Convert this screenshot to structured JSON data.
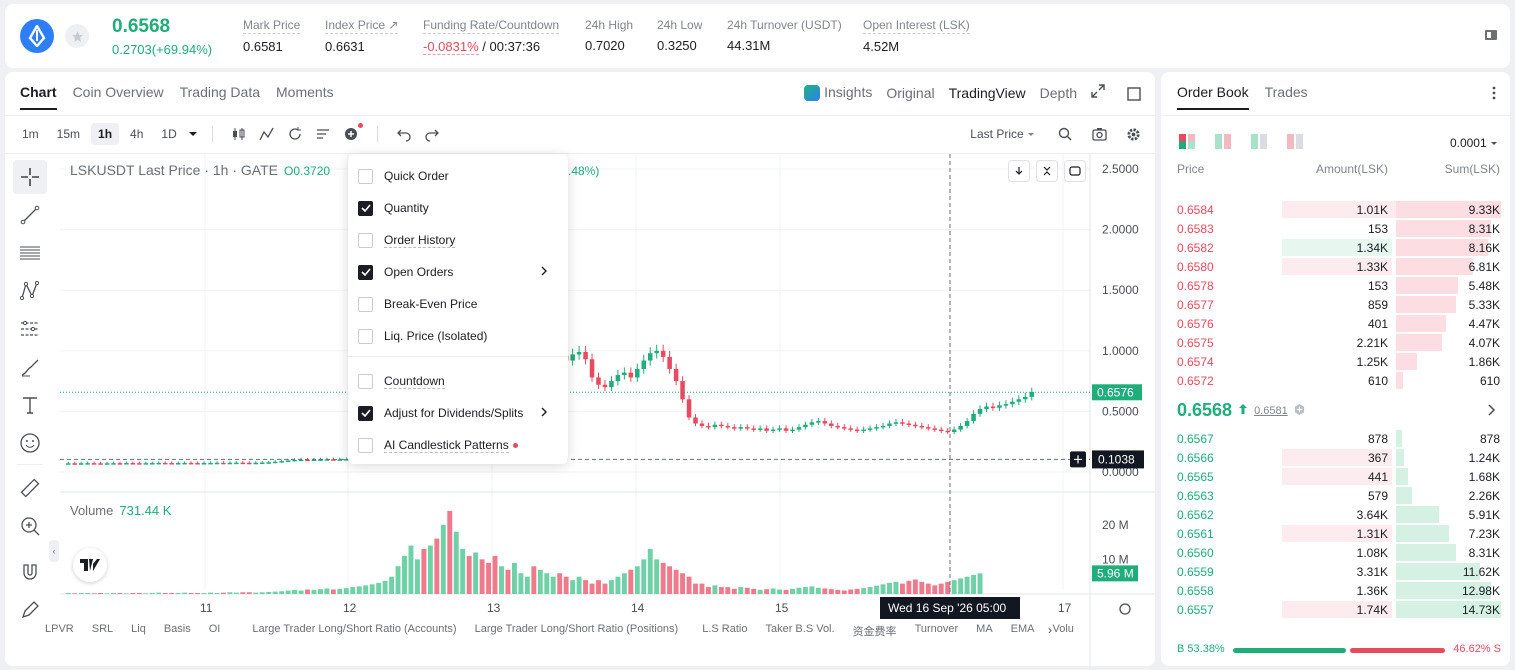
{
  "header": {
    "price": "0.6568",
    "change": "0.2703(+69.94%)",
    "stats": [
      {
        "label": "Mark Price",
        "value": "0.6581"
      },
      {
        "label": "Index Price ↗",
        "value": "0.6631"
      },
      {
        "label": "Funding Rate/Countdown",
        "value_neg": "-0.0831%",
        "value": " / 00:37:36"
      },
      {
        "label": "24h High",
        "value": "0.7020"
      },
      {
        "label": "24h Low",
        "value": "0.3250"
      },
      {
        "label": "24h Turnover (USDT)",
        "value": "44.31M"
      },
      {
        "label": "Open Interest (LSK)",
        "value": "4.52M"
      }
    ]
  },
  "chart_tabs": [
    "Chart",
    "Coin Overview",
    "Trading Data",
    "Moments"
  ],
  "view_tabs": [
    "Insights",
    "Original",
    "TradingView",
    "Depth"
  ],
  "intervals": [
    "1m",
    "15m",
    "1h",
    "4h",
    "1D"
  ],
  "price_type": "Last Price",
  "legend": {
    "symbol": "LSKUSDT Last Price · 1h · GATE",
    "open": "O0.3720",
    "extra": ".48%)"
  },
  "volume_legend": {
    "label": "Volume",
    "value": "731.44 K"
  },
  "menu": {
    "items": [
      {
        "label": "Quick Order",
        "checked": false
      },
      {
        "label": "Quantity",
        "checked": true
      },
      {
        "label": "Order History",
        "checked": false
      },
      {
        "label": "Open Orders",
        "checked": true
      },
      {
        "label": "Break-Even Price",
        "checked": false
      },
      {
        "label": "Liq. Price (Isolated)",
        "checked": false
      },
      {
        "label": "Countdown",
        "checked": false
      },
      {
        "label": "Adjust for Dividends/Splits",
        "checked": true
      },
      {
        "label": "AI Candlestick Patterns",
        "checked": false
      }
    ]
  },
  "chart_data": {
    "type": "candlestick",
    "price_axis": [
      "2.5000",
      "2.0000",
      "1.5000",
      "1.0000",
      "0.5000",
      "0.0000"
    ],
    "volume_axis": [
      "20 M",
      "10 M"
    ],
    "time_axis": [
      "11",
      "12",
      "13",
      "14",
      "15",
      "17"
    ],
    "last_price_label": "0.6576",
    "crosshair_price": "0.1038",
    "crosshair_time": "Wed 16 Sep '26   05:00",
    "last_volume_label": "5.96 M",
    "price_range": [
      0,
      2.5
    ],
    "candles_close": [
      0.072,
      0.071,
      0.072,
      0.073,
      0.072,
      0.071,
      0.072,
      0.073,
      0.072,
      0.074,
      0.073,
      0.072,
      0.073,
      0.074,
      0.075,
      0.074,
      0.073,
      0.074,
      0.075,
      0.074,
      0.073,
      0.074,
      0.075,
      0.076,
      0.075,
      0.076,
      0.077,
      0.076,
      0.075,
      0.076,
      0.078,
      0.08,
      0.085,
      0.09,
      0.095,
      0.1,
      0.102,
      0.1,
      0.103,
      0.104,
      0.105,
      0.103,
      0.104,
      0.106,
      0.108,
      0.11,
      0.115,
      0.12,
      0.13,
      0.15,
      0.2,
      0.3,
      0.42,
      0.58,
      0.62,
      0.6,
      0.7,
      0.68,
      0.75,
      0.72,
      0.85,
      0.95,
      0.9,
      1.0,
      0.98,
      0.92,
      0.88,
      0.95,
      0.8,
      0.85,
      0.9,
      0.95,
      0.88,
      0.92,
      0.96,
      1.0,
      0.96,
      0.92,
      0.97,
      0.99,
      0.93,
      0.78,
      0.72,
      0.7,
      0.75,
      0.8,
      0.82,
      0.78,
      0.85,
      0.92,
      0.98,
      1.0,
      0.95,
      0.85,
      0.75,
      0.6,
      0.45,
      0.4,
      0.38,
      0.37,
      0.39,
      0.38,
      0.37,
      0.36,
      0.37,
      0.36,
      0.35,
      0.36,
      0.34,
      0.35,
      0.36,
      0.34,
      0.35,
      0.37,
      0.39,
      0.41,
      0.42,
      0.4,
      0.38,
      0.37,
      0.36,
      0.35,
      0.34,
      0.35,
      0.36,
      0.37,
      0.38,
      0.4,
      0.41,
      0.4,
      0.39,
      0.38,
      0.37,
      0.36,
      0.35,
      0.34,
      0.33,
      0.35,
      0.38,
      0.42,
      0.48,
      0.52,
      0.54,
      0.53,
      0.55,
      0.56,
      0.58,
      0.6,
      0.62,
      0.66
    ],
    "volumes_m": [
      0.3,
      0.2,
      0.3,
      0.3,
      0.2,
      0.3,
      0.2,
      0.3,
      0.3,
      0.2,
      0.3,
      0.3,
      0.2,
      0.3,
      0.4,
      0.3,
      0.3,
      0.3,
      0.4,
      0.3,
      0.3,
      0.3,
      0.4,
      0.3,
      0.4,
      0.5,
      0.4,
      0.5,
      0.5,
      0.4,
      0.5,
      0.6,
      0.7,
      0.8,
      1.0,
      1.2,
      1.0,
      1.3,
      1.2,
      1.4,
      1.6,
      1.3,
      1.5,
      1.7,
      2.0,
      2.2,
      2.5,
      2.8,
      3.2,
      3.8,
      5.0,
      8.0,
      11.0,
      14.0,
      10.0,
      13.0,
      14.0,
      16.0,
      20.0,
      24.0,
      18.0,
      13.0,
      11.0,
      12.0,
      10.0,
      9.0,
      11.0,
      8.0,
      7.0,
      9.0,
      6.0,
      5.0,
      8.0,
      7.0,
      6.0,
      5.0,
      6.0,
      5.0,
      4.0,
      5.0,
      4.0,
      3.0,
      4.0,
      3.0,
      4.0,
      5.0,
      6.0,
      7.0,
      8.0,
      10.0,
      13.0,
      10.0,
      9.0,
      8.0,
      7.0,
      6.0,
      5.0,
      3.0,
      3.0,
      2.0,
      2.5,
      2.0,
      2.0,
      1.5,
      2.0,
      1.8,
      1.5,
      1.2,
      1.4,
      1.6,
      1.3,
      1.2,
      1.5,
      1.8,
      2.0,
      2.2,
      1.8,
      1.6,
      1.4,
      1.2,
      1.0,
      1.3,
      1.5,
      1.7,
      2.0,
      2.4,
      2.8,
      3.2,
      3.5,
      3.0,
      3.8,
      4.2,
      3.5,
      3.0,
      2.5,
      3.0,
      3.5,
      4.0,
      4.5,
      5.0,
      5.5,
      5.96
    ]
  },
  "bottom_indicators": [
    "LPVR",
    "SRL",
    "Liq",
    "Basis",
    "OI",
    "Large Trader Long/Short Ratio (Accounts)",
    "Large Trader Long/Short Ratio (Positions)",
    "L.S Ratio",
    "Taker B.S Vol.",
    "资金费率",
    "Turnover",
    "MA",
    "EMA",
    "Volu"
  ],
  "orderbook": {
    "tabs": [
      "Order Book",
      "Trades"
    ],
    "precision": "0.0001",
    "headers": {
      "price": "Price",
      "amount": "Amount(LSK)",
      "sum": "Sum(LSK)"
    },
    "asks": [
      {
        "p": "0.6584",
        "a": "1.01K",
        "s": "9.33K",
        "af": 0.58,
        "sf": 1.0,
        "ag": false
      },
      {
        "p": "0.6583",
        "a": "153",
        "s": "8.31K",
        "af": 0.0,
        "sf": 0.9,
        "ag": false
      },
      {
        "p": "0.6582",
        "a": "1.34K",
        "s": "8.16K",
        "af": 0.55,
        "sf": 0.88,
        "ag": true
      },
      {
        "p": "0.6580",
        "a": "1.33K",
        "s": "6.81K",
        "af": 0.55,
        "sf": 0.73,
        "ag": false
      },
      {
        "p": "0.6578",
        "a": "153",
        "s": "5.48K",
        "af": 0.0,
        "sf": 0.59,
        "ag": false
      },
      {
        "p": "0.6577",
        "a": "859",
        "s": "5.33K",
        "af": 0.0,
        "sf": 0.57,
        "ag": false
      },
      {
        "p": "0.6576",
        "a": "401",
        "s": "4.47K",
        "af": 0.0,
        "sf": 0.48,
        "ag": false
      },
      {
        "p": "0.6575",
        "a": "2.21K",
        "s": "4.07K",
        "af": 0.0,
        "sf": 0.44,
        "ag": false
      },
      {
        "p": "0.6574",
        "a": "1.25K",
        "s": "1.86K",
        "af": 0.0,
        "sf": 0.2,
        "ag": false
      },
      {
        "p": "0.6572",
        "a": "610",
        "s": "610",
        "af": 0.0,
        "sf": 0.07,
        "ag": false
      }
    ],
    "last": "0.6568",
    "mark": "0.6581",
    "bids": [
      {
        "p": "0.6567",
        "a": "878",
        "s": "878",
        "af": 0.0,
        "sf": 0.06,
        "ar": false
      },
      {
        "p": "0.6566",
        "a": "367",
        "s": "1.24K",
        "af": 0.55,
        "sf": 0.08,
        "ar": true
      },
      {
        "p": "0.6565",
        "a": "441",
        "s": "1.68K",
        "af": 0.55,
        "sf": 0.11,
        "ar": true
      },
      {
        "p": "0.6563",
        "a": "579",
        "s": "2.26K",
        "af": 0.0,
        "sf": 0.15,
        "ar": false
      },
      {
        "p": "0.6562",
        "a": "3.64K",
        "s": "5.91K",
        "af": 0.0,
        "sf": 0.41,
        "ar": false
      },
      {
        "p": "0.6561",
        "a": "1.31K",
        "s": "7.23K",
        "af": 0.55,
        "sf": 0.5,
        "ar": true
      },
      {
        "p": "0.6560",
        "a": "1.08K",
        "s": "8.31K",
        "af": 0.0,
        "sf": 0.57,
        "ar": false
      },
      {
        "p": "0.6559",
        "a": "3.31K",
        "s": "11.62K",
        "af": 0.0,
        "sf": 0.8,
        "ar": false
      },
      {
        "p": "0.6558",
        "a": "1.36K",
        "s": "12.98K",
        "af": 0.0,
        "sf": 0.9,
        "ar": false
      },
      {
        "p": "0.6557",
        "a": "1.74K",
        "s": "14.73K",
        "af": 0.55,
        "sf": 1.0,
        "ar": true
      }
    ],
    "buy_ratio": "53.38%",
    "sell_ratio": "46.62%",
    "buy_fraction": 0.5338
  }
}
